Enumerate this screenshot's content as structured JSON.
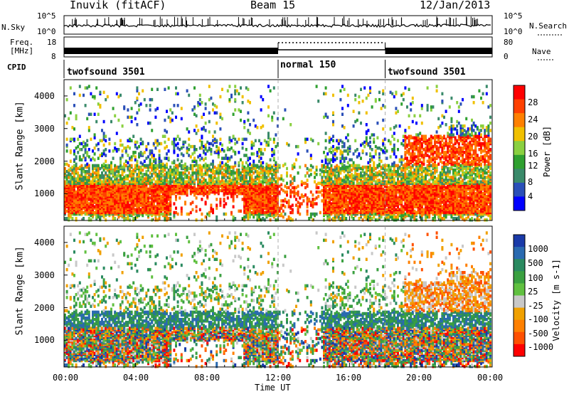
{
  "header": {
    "station": "Inuvik (fitACF)",
    "beam": "Beam 15",
    "date": "12/Jan/2013"
  },
  "status_panels": {
    "nsky_label": "N.Sky",
    "nsky_ticks": [
      "10^5",
      "10^0"
    ],
    "nsearch_label": "N.Search",
    "nsearch_ticks": [
      "10^5",
      "10^0"
    ],
    "freq_label": "Freq.",
    "freq_unit": "[MHz]",
    "freq_ticks": [
      "18",
      "8"
    ],
    "nave_label": "Nave",
    "nave_ticks": [
      "80",
      "0"
    ],
    "cpid_label": "CPID",
    "cpid_segments": [
      {
        "label": "twofsound 3501",
        "start_hour": 0,
        "end_hour": 12
      },
      {
        "label": "normal 150",
        "start_hour": 12,
        "end_hour": 18
      },
      {
        "label": "twofsound 3501",
        "start_hour": 18,
        "end_hour": 24
      }
    ]
  },
  "chart_data": [
    {
      "type": "heatmap",
      "panel": "power",
      "ylabel": "Slant Range [km]",
      "xlabel": "",
      "x_range_hours": [
        0,
        24
      ],
      "y_range_km": [
        180,
        4500
      ],
      "y_ticks": [
        1000,
        2000,
        3000,
        4000
      ],
      "colorbar": {
        "label": "Power [dB]",
        "ticks": [
          4,
          8,
          12,
          16,
          20,
          24,
          28
        ],
        "colors": [
          "#0000ff",
          "#2a4fb8",
          "#3a8a6a",
          "#2fa030",
          "#8ad040",
          "#f0c000",
          "#ff8000",
          "#ff4000",
          "#ff0000"
        ]
      }
    },
    {
      "type": "heatmap",
      "panel": "velocity",
      "ylabel": "Slant Range [km]",
      "xlabel": "Time UT",
      "x_range_hours": [
        0,
        24
      ],
      "x_tick_labels": [
        "00:00",
        "04:00",
        "08:00",
        "12:00",
        "16:00",
        "20:00",
        "00:00"
      ],
      "y_range_km": [
        180,
        4500
      ],
      "y_ticks": [
        1000,
        2000,
        3000,
        4000
      ],
      "colorbar": {
        "label": "Velocity [m s-1]",
        "ticks": [
          "1000",
          "500",
          "100",
          "25",
          "-25",
          "-100",
          "-500",
          "-1000"
        ],
        "colors": [
          "#1a3aa8",
          "#2a6ab0",
          "#2a8a60",
          "#3aa040",
          "#60c040",
          "#c8c8c8",
          "#f0a000",
          "#ff8000",
          "#ff5000",
          "#ff0000"
        ]
      }
    }
  ]
}
